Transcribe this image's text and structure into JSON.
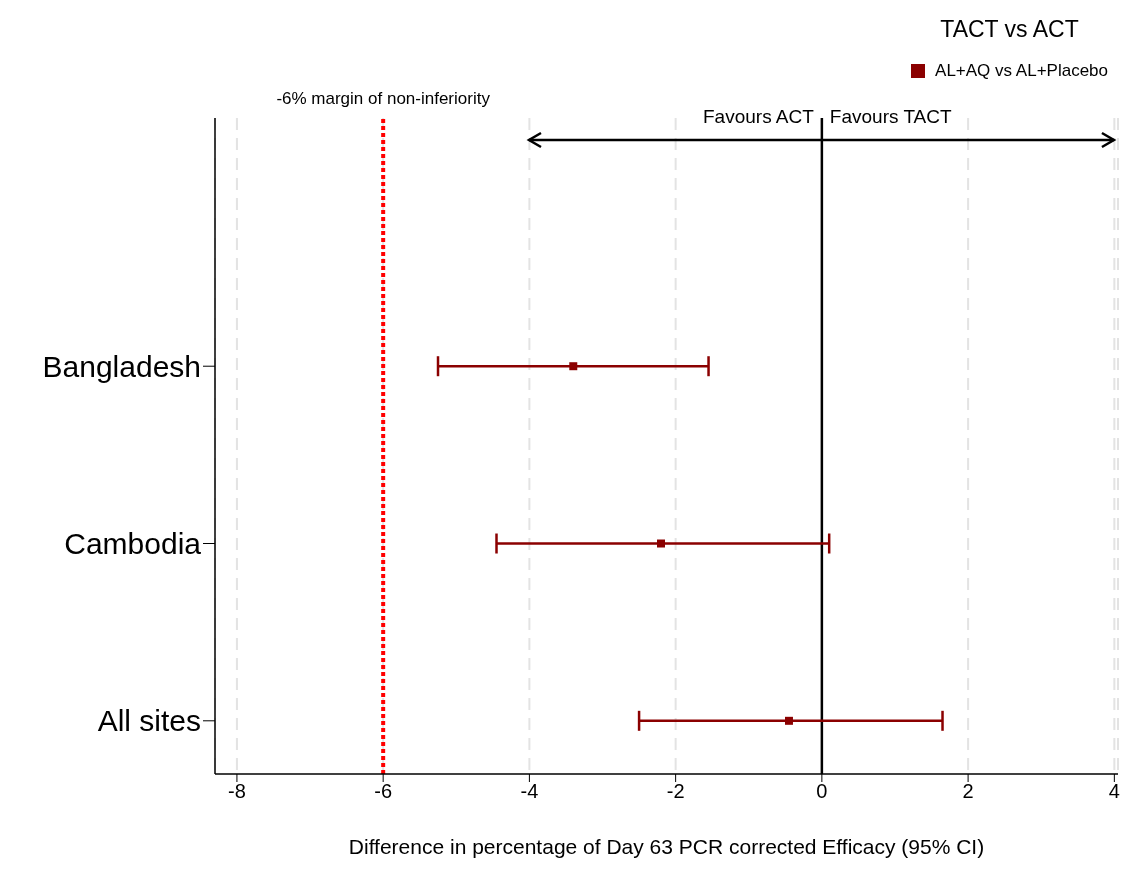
{
  "chart_data": {
    "type": "scatter",
    "orientation": "horizontal",
    "categories": [
      "Bangladesh",
      "Cambodia",
      "All sites"
    ],
    "series": [
      {
        "name": "AL+AQ vs AL+Placebo",
        "color": "#8b0000",
        "values": [
          -3.4,
          -2.2,
          -0.45
        ],
        "errors": [
          [
            -5.25,
            -1.55
          ],
          [
            -4.45,
            0.1
          ],
          [
            -2.5,
            1.65
          ]
        ]
      }
    ],
    "xlim": [
      -8.3,
      4.05
    ],
    "xticks": [
      -8,
      -6,
      -4,
      -2,
      0,
      2,
      4
    ],
    "xlabel": "Difference in percentage of Day 63 PCR corrected Efficacy (95% CI)",
    "legend_title": "TACT vs ACT",
    "legend": "top right",
    "marker": "square",
    "grid": "x",
    "ref_lines": [
      {
        "axis": "x",
        "value": -6,
        "label": "-6% margin of non-inferiority",
        "color": "#ff0000",
        "line_style": "dotted"
      },
      {
        "axis": "x",
        "value": 0,
        "color": "#000000",
        "line_style": "solid"
      }
    ],
    "annotations": [
      "Favours ACT",
      "Favours TACT"
    ]
  }
}
